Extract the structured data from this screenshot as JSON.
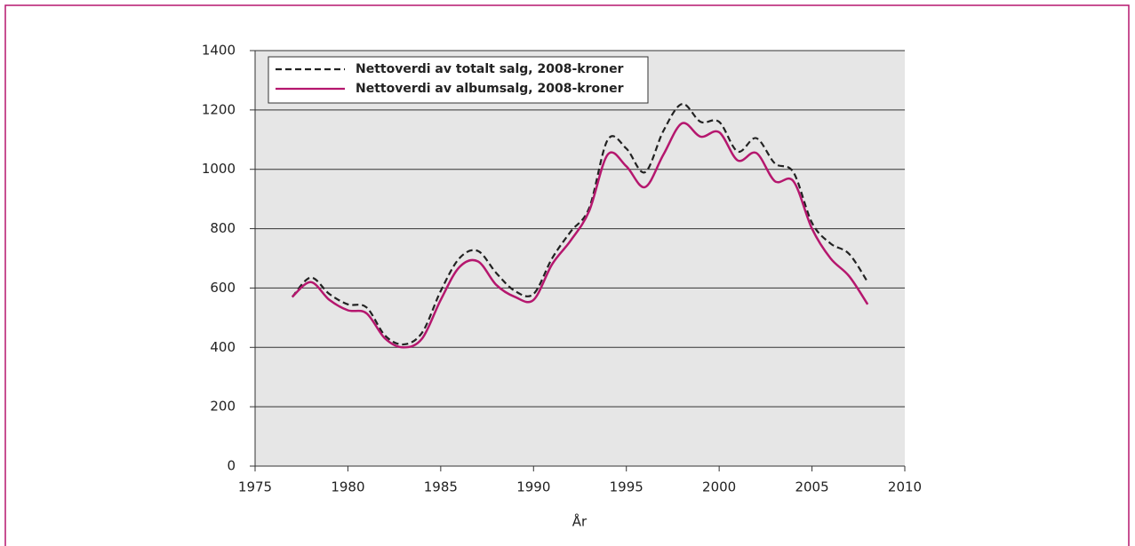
{
  "chart_data": {
    "type": "line",
    "x": [
      1977,
      1978,
      1979,
      1980,
      1981,
      1982,
      1983,
      1984,
      1985,
      1986,
      1987,
      1988,
      1989,
      1990,
      1991,
      1992,
      1993,
      1994,
      1995,
      1996,
      1997,
      1998,
      1999,
      2000,
      2001,
      2002,
      2003,
      2004,
      2005,
      2006,
      2007,
      2008
    ],
    "series": [
      {
        "name": "Nettoverdi av totalt salg, 2008-kroner",
        "color": "#222222",
        "dash": true,
        "values": [
          570,
          635,
          580,
          545,
          535,
          440,
          410,
          450,
          590,
          700,
          725,
          650,
          590,
          580,
          700,
          790,
          870,
          1100,
          1070,
          990,
          1130,
          1220,
          1160,
          1160,
          1060,
          1105,
          1020,
          990,
          820,
          750,
          715,
          620
        ]
      },
      {
        "name": "Nettoverdi av albumsalg, 2008-kroner",
        "color": "#b5176e",
        "dash": false,
        "values": [
          570,
          620,
          560,
          525,
          515,
          430,
          400,
          430,
          560,
          670,
          690,
          610,
          570,
          560,
          680,
          760,
          860,
          1050,
          1010,
          940,
          1050,
          1155,
          1110,
          1125,
          1030,
          1055,
          960,
          960,
          800,
          700,
          640,
          545
        ]
      }
    ],
    "xlabel": "År",
    "xlim": [
      1975,
      2010
    ],
    "xticks": [
      1975,
      1980,
      1985,
      1990,
      1995,
      2000,
      2005,
      2010
    ],
    "ylim": [
      0,
      1400
    ],
    "yticks": [
      0,
      200,
      400,
      600,
      800,
      1000,
      1200,
      1400
    ],
    "grid": true,
    "legend": "upper left"
  }
}
